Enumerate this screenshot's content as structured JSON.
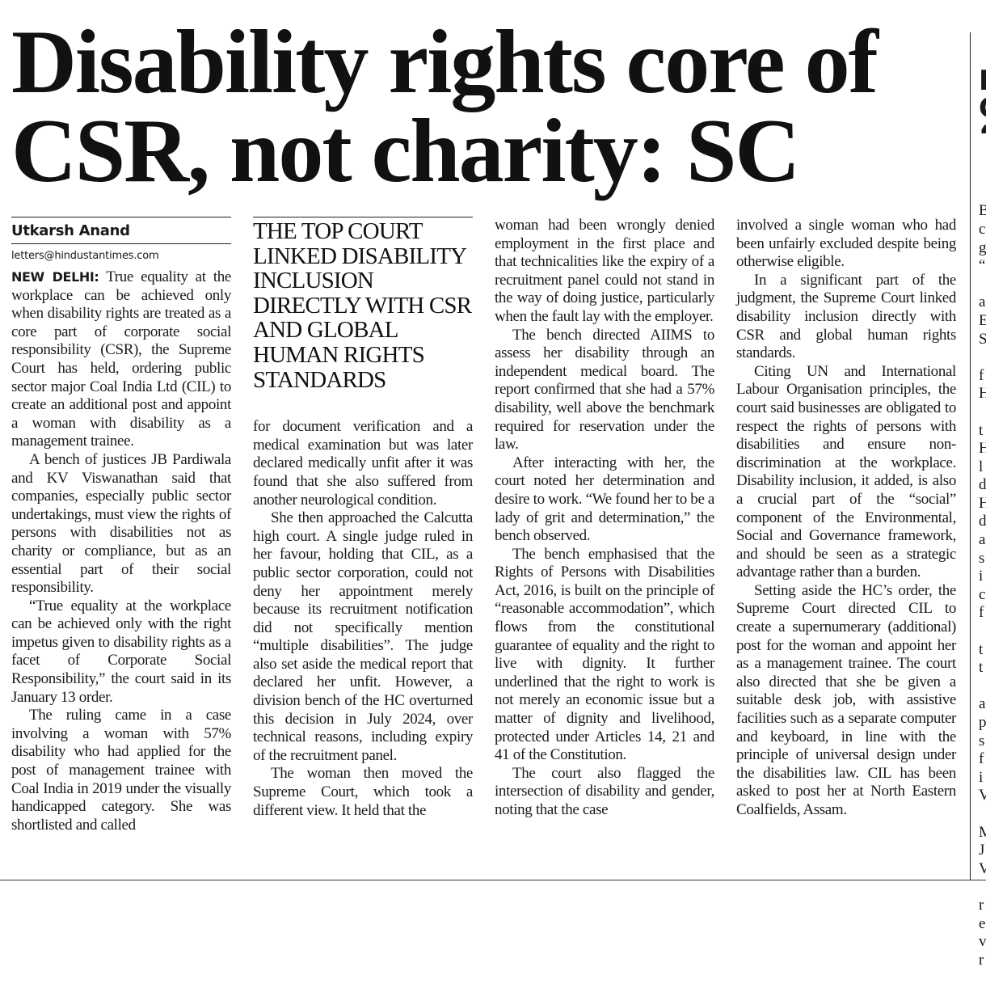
{
  "headline": "Disability rights core of CSR, not charity: SC",
  "byline": {
    "author": "Utkarsh Anand",
    "email": "letters@hindustantimes.com",
    "dateline": "NEW DELHI:"
  },
  "pull_quote": "The top court linked disability inclusion directly with CSR and global human rights standards",
  "columns": {
    "c1": [
      "True equality at the workplace can be achieved only when disability rights are treated as a core part of corporate social responsibility (CSR), the Supreme Court has held, ordering public sector major Coal India Ltd (CIL) to create an additional post and appoint a woman with disability as a management trainee.",
      "A bench of justices JB Pardiwala and KV Viswanathan said that companies, especially public sector undertakings, must view the rights of persons with disabilities not as charity or compliance, but as an essential part of their social responsibility.",
      "“True equality at the workplace can be achieved only with the right impetus given to disability rights as a facet of Corporate Social Responsibility,” the court said in its January 13 order.",
      "The ruling came in a case involving a woman with 57% disability who had applied for the post of management trainee with Coal India in 2019 under the visually handicapped category. She was shortlisted and called"
    ],
    "c2": [
      "for document verification and a medical examination but was later declared medically unfit after it was found that she also suffered from another neurological condition.",
      "She then approached the Calcutta high court. A single judge ruled in her favour, holding that CIL, as a public sector corporation, could not deny her appointment merely because its recruitment notification did not specifically mention “multiple disabilities”. The judge also set aside the medical report that declared her unfit. However, a division bench of the HC overturned this decision in July 2024, over technical reasons, including expiry of the recruitment panel.",
      "The woman then moved the Supreme Court, which took a different view. It held that the"
    ],
    "c3": [
      "woman had been wrongly denied employment in the first place and that technicalities like the expiry of a recruitment panel could not stand in the way of doing justice, particularly when the fault lay with the employer.",
      "The bench directed AIIMS to assess her disability through an independent medical board. The report confirmed that she had a 57% disability, well above the benchmark required for reservation under the law.",
      "After interacting with her, the court noted her determination and desire to work. “We found her to be a lady of grit and determination,” the bench observed.",
      "The bench emphasised that the Rights of Persons with Disabilities Act, 2016, is built on the principle of “reasonable accommodation”, which flows from the constitutional guarantee of equality and the right to live with dignity. It further underlined that the right to work is not merely an economic issue but a matter of dignity and livelihood, protected under Articles 14, 21 and 41 of the Constitution.",
      "The court also flagged the intersection of disability and gender, noting that the case"
    ],
    "c4": [
      "involved a single woman who had been unfairly excluded despite being otherwise eligible.",
      "In a significant part of the judgment, the Supreme Court linked disability inclusion directly with CSR and global human rights standards.",
      "Citing UN and International Labour Organisation principles, the court said businesses are obligated to respect the rights of persons with disabilities and ensure non-discrimination at the workplace. Disability inclusion, it added, is also a crucial part of the “social” component of the Environmental, Social and Governance framework, and should be seen as a strategic advantage rather than a burden.",
      "Setting aside the HC’s order, the Supreme Court directed CIL to create a supernumerary (additional) post for the woman and appoint her as a management trainee. The court also directed that she be given a suitable desk job, with assistive facilities such as a separate computer and keyboard, in line with the principle of universal design under the disabilities law. CIL has been asked to post her at North Eastern Coalfields, Assam."
    ]
  },
  "cropped_edge": {
    "heading": "H\nC\n‘",
    "lines": "B\nc\ng\n“\n\na\nE\nS\n\nf\nH\n\nt\nH\nl\nd\nH\nd\na\ns\ni\nc\nf\n\nt\nt\n\na\np\ns\nf\ni\nV\n\nM\nJ\nV\n\nr\ne\nv\nr"
  }
}
